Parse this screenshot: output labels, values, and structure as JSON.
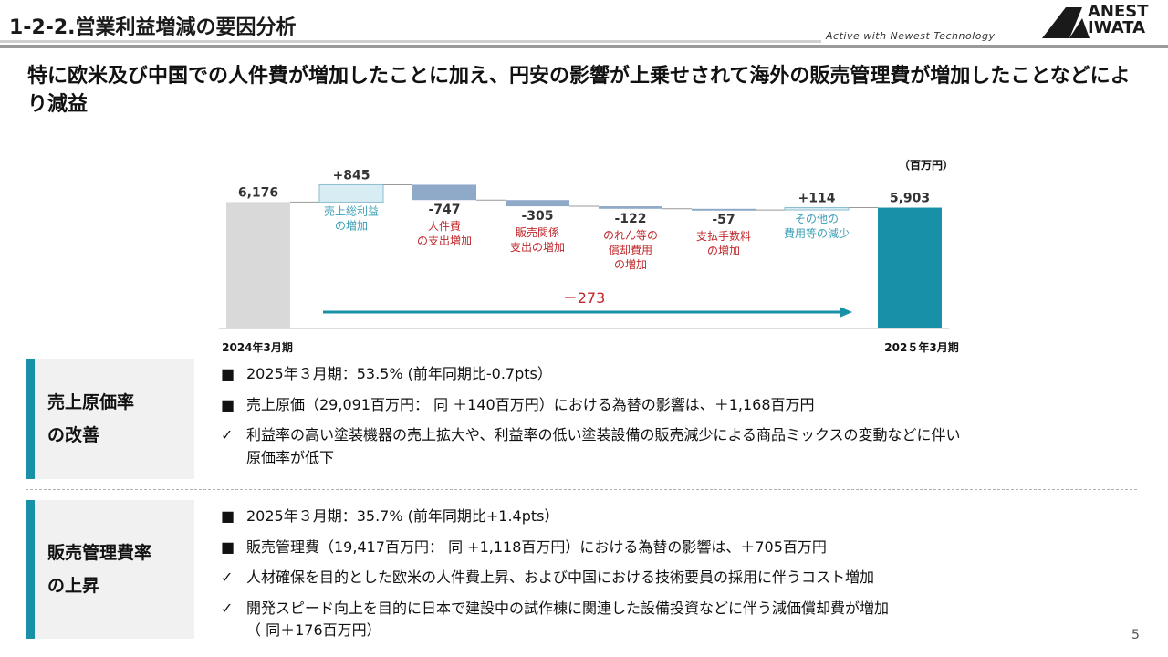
{
  "header": {
    "title": "1-2-2.営業利益増減の要因分析",
    "tagline": "Active with Newest Technology",
    "logo_line1": "ANEST",
    "logo_line2": "IWATA"
  },
  "headline": "特に欧米及び中国での人件費が増加したことに加え、円安の影響が上乗せされて海外の販売管理費が増加したことなどにより減益",
  "chart_data": {
    "type": "bar",
    "unit": "（百万円）",
    "start": {
      "label": "2024年3月期",
      "value": 6176,
      "value_label": "6,176"
    },
    "end": {
      "label": "202５年3月期",
      "value": 5903,
      "value_label": "5,903"
    },
    "steps": [
      {
        "value": 845,
        "value_label": "+845",
        "desc": [
          "売上総利益",
          "の増加"
        ],
        "desc_color": "#3a9fb5"
      },
      {
        "value": -747,
        "value_label": "-747",
        "desc": [
          "人件費",
          "の支出増加"
        ],
        "desc_color": "#c0282d"
      },
      {
        "value": -305,
        "value_label": "-305",
        "desc": [
          "販売関係",
          "支出の増加"
        ],
        "desc_color": "#c0282d"
      },
      {
        "value": -122,
        "value_label": "-122",
        "desc": [
          "のれん等の",
          "償却費用",
          "の増加"
        ],
        "desc_color": "#c0282d"
      },
      {
        "value": -57,
        "value_label": "-57",
        "desc": [
          "支払手数料",
          "の増加"
        ],
        "desc_color": "#c0282d"
      },
      {
        "value": 114,
        "value_label": "+114",
        "desc": [
          "その他の",
          "費用等の減少"
        ],
        "desc_color": "#3a9fb5"
      }
    ],
    "total_change_label": "－273",
    "colors": {
      "start": "#d9d9d9",
      "end": "#1790a8",
      "increase": "#d8ecf3",
      "decrease": "#8fa9c8",
      "arrow": "#1790a8",
      "negative_text": "#c0282d"
    }
  },
  "sections": [
    {
      "name": [
        "売上原価率",
        "の改善"
      ],
      "bullets": [
        {
          "mark": "■",
          "text": "2025年３月期：53.5% (前年同期比-0.7pts）"
        },
        {
          "mark": "■",
          "text": "売上原価（29,091百万円：  同 ＋140百万円）における為替の影響は、＋1,168百万円"
        },
        {
          "mark": "✓",
          "text": "利益率の高い塗装機器の売上拡大や、利益率の低い塗装設備の販売減少による商品ミックスの変動などに伴い"
        },
        {
          "mark": "",
          "text": "原価率が低下"
        }
      ]
    },
    {
      "name": [
        "販売管理費率",
        "の上昇"
      ],
      "bullets": [
        {
          "mark": "■",
          "text": "2025年３月期：35.7% (前年同期比+1.4pts）"
        },
        {
          "mark": "■",
          "text": "販売管理費（19,417百万円：  同 +1,118百万円）における為替の影響は、＋705百万円"
        },
        {
          "mark": "✓",
          "text": "人材確保を目的とした欧米の人件費上昇、および中国における技術要員の採用に伴うコスト増加"
        },
        {
          "mark": "✓",
          "text": "開発スピード向上を目的に日本で建設中の試作棟に関連した設備投資などに伴う減価償却費が増加"
        },
        {
          "mark": "",
          "text": "（ 同＋176百万円）"
        }
      ]
    }
  ],
  "page_number": "5"
}
